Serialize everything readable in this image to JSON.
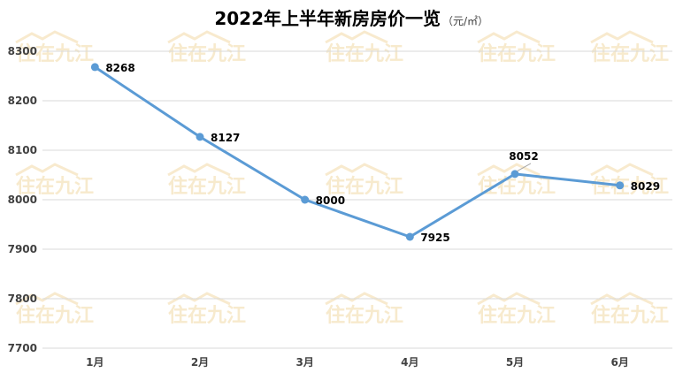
{
  "chart_data": {
    "type": "line",
    "title": "2022年上半年新房房价一览",
    "unit": "（元/㎡）",
    "categories": [
      "1月",
      "2月",
      "3月",
      "4月",
      "5月",
      "6月"
    ],
    "series": [
      {
        "values": [
          8268,
          8127,
          8000,
          7925,
          8052,
          8029
        ]
      }
    ],
    "data_labels": [
      "8268",
      "8127",
      "8000",
      "7925",
      "8052",
      "8029"
    ],
    "ylim": [
      7700,
      8300
    ],
    "y_ticks": [
      "7700",
      "7800",
      "7900",
      "8000",
      "8100",
      "8200",
      "8300"
    ],
    "grid": true,
    "legend": "none",
    "colors": {
      "line": "#5b9bd5",
      "grid": "#d9d9d9",
      "watermark": "#f2d9a6"
    }
  },
  "watermark": {
    "text": "住在九江"
  }
}
